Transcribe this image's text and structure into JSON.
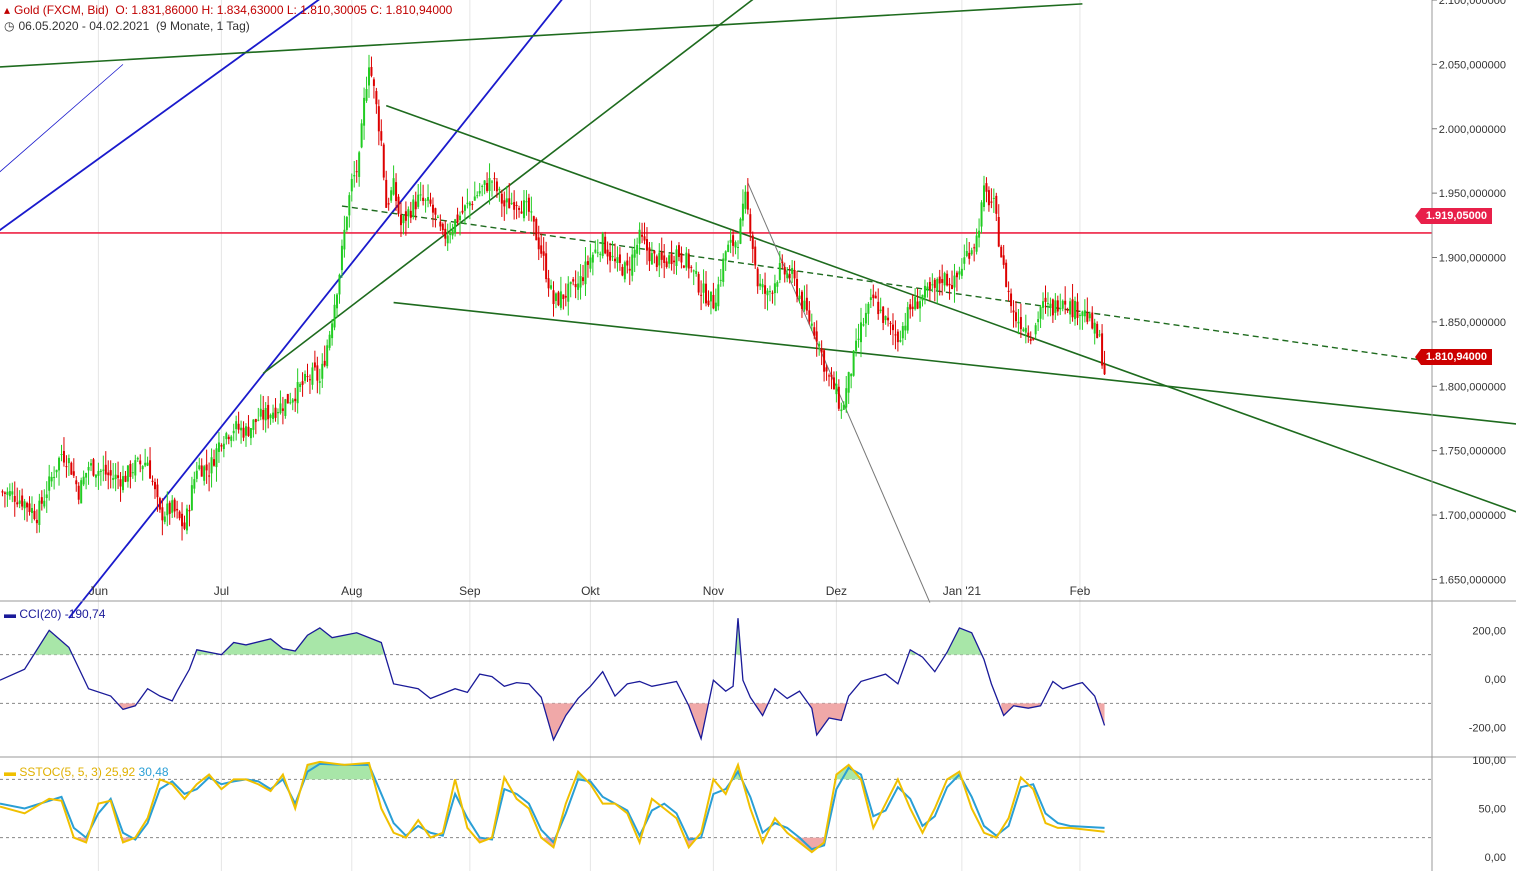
{
  "header": {
    "instrument": "Gold (FXCM, Bid)",
    "ohlc": "O: 1.831,86000  H: 1.834,63000  L: 1.810,30005  C: 1.810,94000",
    "range": "06.05.2020 - 04.02.2021",
    "range_note": "(9 Monate, 1 Tag)"
  },
  "price_tags": {
    "resistance": "1.919,05000",
    "last": "1.810,94000"
  },
  "colors": {
    "up": "#22cc22",
    "down": "#dd0000",
    "trend_blue": "#1a1acc",
    "trend_green": "#1e6b1e",
    "horizontal_red": "#ee2244",
    "cci": "#1a1a99",
    "stoch_fast": "#f0c000",
    "stoch_slow": "#2a9fd6"
  },
  "indicators": {
    "cci": {
      "name": "CCI(20)",
      "value": "-190,74",
      "ticks": [
        "200,00",
        "0,00",
        "-200,00"
      ]
    },
    "sstoc": {
      "name": "SSTOC(5, 5, 3)",
      "value1": "25,92",
      "value2": "30,48",
      "ticks": [
        "100,00",
        "50,00",
        "0,00"
      ]
    }
  },
  "chart_data": {
    "type": "candlestick",
    "title": "Gold (FXCM, Bid)",
    "x_labels": [
      "Jun",
      "Jul",
      "Aug",
      "Sep",
      "Okt",
      "Nov",
      "Dez",
      "Jan '21",
      "Feb"
    ],
    "y_ticks": [
      "1.650,000000",
      "1.700,000000",
      "1.750,000000",
      "1.800,000000",
      "1.850,000000",
      "1.900,000000",
      "1.950,000000",
      "2.000,000000",
      "2.050,000000",
      "2.100,000000"
    ],
    "ylim": [
      1634,
      2100
    ],
    "horizontal_line": 1919.05,
    "last_close": 1810.94,
    "close_path": [
      [
        0,
        1718
      ],
      [
        5,
        1716
      ],
      [
        10,
        1710
      ],
      [
        15,
        1700
      ],
      [
        20,
        1724
      ],
      [
        25,
        1748
      ],
      [
        28,
        1742
      ],
      [
        32,
        1718
      ],
      [
        36,
        1738
      ],
      [
        40,
        1735
      ],
      [
        45,
        1730
      ],
      [
        50,
        1728
      ],
      [
        55,
        1738
      ],
      [
        60,
        1742
      ],
      [
        65,
        1700
      ],
      [
        70,
        1705
      ],
      [
        75,
        1690
      ],
      [
        80,
        1738
      ],
      [
        85,
        1735
      ],
      [
        90,
        1760
      ],
      [
        95,
        1768
      ],
      [
        100,
        1765
      ],
      [
        105,
        1775
      ],
      [
        110,
        1780
      ],
      [
        115,
        1786
      ],
      [
        120,
        1795
      ],
      [
        125,
        1805
      ],
      [
        128,
        1810
      ],
      [
        130,
        1803
      ],
      [
        134,
        1842
      ],
      [
        138,
        1889
      ],
      [
        141,
        1935
      ],
      [
        143,
        1958
      ],
      [
        145,
        1968
      ],
      [
        146,
        1975
      ],
      [
        148,
        2020
      ],
      [
        150,
        2053
      ],
      [
        152,
        2030
      ],
      [
        155,
        1990
      ],
      [
        157,
        1940
      ],
      [
        160,
        1955
      ],
      [
        163,
        1925
      ],
      [
        166,
        1935
      ],
      [
        170,
        1945
      ],
      [
        175,
        1940
      ],
      [
        180,
        1915
      ],
      [
        185,
        1928
      ],
      [
        190,
        1940
      ],
      [
        195,
        1952
      ],
      [
        200,
        1960
      ],
      [
        205,
        1940
      ],
      [
        210,
        1945
      ],
      [
        215,
        1935
      ],
      [
        220,
        1905
      ],
      [
        225,
        1865
      ],
      [
        230,
        1872
      ],
      [
        235,
        1878
      ],
      [
        240,
        1900
      ],
      [
        245,
        1912
      ],
      [
        250,
        1895
      ],
      [
        255,
        1890
      ],
      [
        260,
        1915
      ],
      [
        265,
        1900
      ],
      [
        270,
        1895
      ],
      [
        275,
        1905
      ],
      [
        280,
        1895
      ],
      [
        285,
        1875
      ],
      [
        290,
        1865
      ],
      [
        292,
        1878
      ],
      [
        295,
        1905
      ],
      [
        300,
        1915
      ],
      [
        303,
        1945
      ],
      [
        305,
        1925
      ],
      [
        308,
        1880
      ],
      [
        312,
        1870
      ],
      [
        317,
        1890
      ],
      [
        322,
        1885
      ],
      [
        327,
        1860
      ],
      [
        332,
        1840
      ],
      [
        336,
        1810
      ],
      [
        340,
        1795
      ],
      [
        342,
        1780
      ],
      [
        345,
        1805
      ],
      [
        350,
        1845
      ],
      [
        355,
        1868
      ],
      [
        360,
        1850
      ],
      [
        365,
        1838
      ],
      [
        370,
        1860
      ],
      [
        375,
        1870
      ],
      [
        380,
        1875
      ],
      [
        383,
        1885
      ],
      [
        388,
        1880
      ],
      [
        393,
        1903
      ],
      [
        397,
        1915
      ],
      [
        400,
        1950
      ],
      [
        404,
        1940
      ],
      [
        408,
        1890
      ],
      [
        412,
        1855
      ],
      [
        415,
        1850
      ],
      [
        420,
        1840
      ],
      [
        423,
        1862
      ],
      [
        428,
        1860
      ],
      [
        432,
        1870
      ],
      [
        436,
        1860
      ],
      [
        440,
        1860
      ],
      [
        443,
        1850
      ],
      [
        447,
        1835
      ],
      [
        449,
        1811
      ]
    ],
    "cci_path": [
      [
        0,
        -5
      ],
      [
        10,
        40
      ],
      [
        20,
        200
      ],
      [
        28,
        130
      ],
      [
        36,
        -40
      ],
      [
        45,
        -70
      ],
      [
        50,
        -125
      ],
      [
        55,
        -110
      ],
      [
        60,
        -40
      ],
      [
        65,
        -70
      ],
      [
        70,
        -90
      ],
      [
        72,
        -50
      ],
      [
        77,
        40
      ],
      [
        80,
        120
      ],
      [
        85,
        110
      ],
      [
        90,
        100
      ],
      [
        95,
        150
      ],
      [
        100,
        140
      ],
      [
        110,
        165
      ],
      [
        115,
        125
      ],
      [
        120,
        115
      ],
      [
        125,
        180
      ],
      [
        130,
        210
      ],
      [
        135,
        170
      ],
      [
        145,
        190
      ],
      [
        155,
        150
      ],
      [
        160,
        -20
      ],
      [
        170,
        -40
      ],
      [
        175,
        -80
      ],
      [
        180,
        -60
      ],
      [
        185,
        -40
      ],
      [
        190,
        -55
      ],
      [
        195,
        20
      ],
      [
        200,
        10
      ],
      [
        205,
        -30
      ],
      [
        210,
        -15
      ],
      [
        215,
        -20
      ],
      [
        220,
        -75
      ],
      [
        225,
        -250
      ],
      [
        230,
        -150
      ],
      [
        235,
        -80
      ],
      [
        240,
        -30
      ],
      [
        245,
        30
      ],
      [
        250,
        -70
      ],
      [
        255,
        -20
      ],
      [
        260,
        -10
      ],
      [
        265,
        -30
      ],
      [
        270,
        -20
      ],
      [
        275,
        -10
      ],
      [
        280,
        -110
      ],
      [
        285,
        -245
      ],
      [
        290,
        -5
      ],
      [
        295,
        -50
      ],
      [
        298,
        -30
      ],
      [
        300,
        250
      ],
      [
        302,
        -5
      ],
      [
        305,
        -75
      ],
      [
        310,
        -150
      ],
      [
        315,
        -40
      ],
      [
        320,
        -80
      ],
      [
        325,
        -50
      ],
      [
        330,
        -120
      ],
      [
        332,
        -230
      ],
      [
        337,
        -160
      ],
      [
        342,
        -170
      ],
      [
        345,
        -70
      ],
      [
        350,
        -10
      ],
      [
        360,
        20
      ],
      [
        365,
        -20
      ],
      [
        370,
        120
      ],
      [
        375,
        90
      ],
      [
        380,
        30
      ],
      [
        385,
        110
      ],
      [
        390,
        210
      ],
      [
        395,
        190
      ],
      [
        400,
        80
      ],
      [
        403,
        -20
      ],
      [
        408,
        -150
      ],
      [
        412,
        -110
      ],
      [
        418,
        -120
      ],
      [
        423,
        -110
      ],
      [
        428,
        -10
      ],
      [
        432,
        -40
      ],
      [
        438,
        -20
      ],
      [
        440,
        -15
      ],
      [
        445,
        -70
      ],
      [
        449,
        -191
      ]
    ],
    "sstoc_fast_path": [
      [
        0,
        52
      ],
      [
        10,
        45
      ],
      [
        20,
        60
      ],
      [
        25,
        58
      ],
      [
        30,
        20
      ],
      [
        35,
        15
      ],
      [
        40,
        55
      ],
      [
        45,
        58
      ],
      [
        50,
        15
      ],
      [
        55,
        20
      ],
      [
        60,
        40
      ],
      [
        65,
        80
      ],
      [
        70,
        75
      ],
      [
        75,
        60
      ],
      [
        80,
        75
      ],
      [
        85,
        85
      ],
      [
        90,
        70
      ],
      [
        95,
        80
      ],
      [
        100,
        80
      ],
      [
        105,
        75
      ],
      [
        110,
        68
      ],
      [
        115,
        85
      ],
      [
        120,
        50
      ],
      [
        125,
        95
      ],
      [
        130,
        98
      ],
      [
        140,
        95
      ],
      [
        150,
        97
      ],
      [
        155,
        50
      ],
      [
        160,
        25
      ],
      [
        165,
        20
      ],
      [
        170,
        38
      ],
      [
        175,
        20
      ],
      [
        180,
        25
      ],
      [
        185,
        80
      ],
      [
        190,
        30
      ],
      [
        195,
        15
      ],
      [
        200,
        20
      ],
      [
        205,
        82
      ],
      [
        210,
        60
      ],
      [
        215,
        50
      ],
      [
        220,
        20
      ],
      [
        225,
        10
      ],
      [
        230,
        55
      ],
      [
        235,
        88
      ],
      [
        240,
        75
      ],
      [
        245,
        55
      ],
      [
        250,
        55
      ],
      [
        255,
        45
      ],
      [
        260,
        15
      ],
      [
        265,
        60
      ],
      [
        270,
        50
      ],
      [
        275,
        40
      ],
      [
        280,
        10
      ],
      [
        285,
        25
      ],
      [
        290,
        80
      ],
      [
        295,
        65
      ],
      [
        300,
        95
      ],
      [
        305,
        50
      ],
      [
        310,
        15
      ],
      [
        315,
        40
      ],
      [
        320,
        25
      ],
      [
        325,
        15
      ],
      [
        330,
        5
      ],
      [
        335,
        15
      ],
      [
        340,
        85
      ],
      [
        345,
        95
      ],
      [
        350,
        80
      ],
      [
        355,
        30
      ],
      [
        360,
        55
      ],
      [
        365,
        80
      ],
      [
        370,
        50
      ],
      [
        375,
        25
      ],
      [
        380,
        50
      ],
      [
        385,
        80
      ],
      [
        390,
        88
      ],
      [
        395,
        50
      ],
      [
        400,
        25
      ],
      [
        405,
        20
      ],
      [
        410,
        40
      ],
      [
        415,
        82
      ],
      [
        420,
        70
      ],
      [
        425,
        35
      ],
      [
        430,
        30
      ],
      [
        435,
        30
      ],
      [
        449,
        26
      ]
    ],
    "sstoc_slow_path": [
      [
        0,
        55
      ],
      [
        10,
        50
      ],
      [
        20,
        58
      ],
      [
        25,
        62
      ],
      [
        30,
        30
      ],
      [
        35,
        20
      ],
      [
        40,
        45
      ],
      [
        45,
        60
      ],
      [
        50,
        25
      ],
      [
        55,
        18
      ],
      [
        60,
        35
      ],
      [
        65,
        70
      ],
      [
        70,
        78
      ],
      [
        75,
        65
      ],
      [
        80,
        70
      ],
      [
        85,
        82
      ],
      [
        90,
        75
      ],
      [
        95,
        78
      ],
      [
        100,
        80
      ],
      [
        105,
        78
      ],
      [
        110,
        70
      ],
      [
        115,
        80
      ],
      [
        120,
        55
      ],
      [
        125,
        88
      ],
      [
        130,
        96
      ],
      [
        140,
        95
      ],
      [
        150,
        95
      ],
      [
        155,
        65
      ],
      [
        160,
        35
      ],
      [
        165,
        22
      ],
      [
        170,
        32
      ],
      [
        175,
        25
      ],
      [
        180,
        22
      ],
      [
        185,
        65
      ],
      [
        190,
        40
      ],
      [
        195,
        20
      ],
      [
        200,
        18
      ],
      [
        205,
        70
      ],
      [
        210,
        65
      ],
      [
        215,
        55
      ],
      [
        220,
        28
      ],
      [
        225,
        15
      ],
      [
        230,
        45
      ],
      [
        235,
        80
      ],
      [
        240,
        78
      ],
      [
        245,
        62
      ],
      [
        250,
        55
      ],
      [
        255,
        48
      ],
      [
        260,
        22
      ],
      [
        265,
        48
      ],
      [
        270,
        55
      ],
      [
        275,
        45
      ],
      [
        280,
        18
      ],
      [
        285,
        20
      ],
      [
        290,
        65
      ],
      [
        295,
        70
      ],
      [
        300,
        88
      ],
      [
        305,
        62
      ],
      [
        310,
        25
      ],
      [
        315,
        35
      ],
      [
        320,
        30
      ],
      [
        325,
        20
      ],
      [
        330,
        8
      ],
      [
        335,
        12
      ],
      [
        340,
        70
      ],
      [
        345,
        92
      ],
      [
        350,
        85
      ],
      [
        355,
        42
      ],
      [
        360,
        48
      ],
      [
        365,
        72
      ],
      [
        370,
        60
      ],
      [
        375,
        32
      ],
      [
        380,
        42
      ],
      [
        385,
        72
      ],
      [
        390,
        85
      ],
      [
        395,
        62
      ],
      [
        400,
        32
      ],
      [
        405,
        22
      ],
      [
        410,
        32
      ],
      [
        415,
        72
      ],
      [
        420,
        75
      ],
      [
        425,
        45
      ],
      [
        430,
        35
      ],
      [
        435,
        32
      ],
      [
        449,
        30
      ]
    ]
  }
}
